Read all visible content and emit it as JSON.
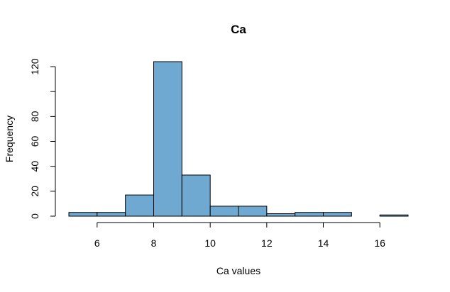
{
  "chart_data": {
    "type": "bar",
    "title": "Ca",
    "xlabel": "Ca values",
    "ylabel": "Frequency",
    "bins": [
      {
        "start": 5,
        "end": 6,
        "count": 3
      },
      {
        "start": 6,
        "end": 7,
        "count": 3
      },
      {
        "start": 7,
        "end": 8,
        "count": 17
      },
      {
        "start": 8,
        "end": 9,
        "count": 124
      },
      {
        "start": 9,
        "end": 10,
        "count": 33
      },
      {
        "start": 10,
        "end": 11,
        "count": 8
      },
      {
        "start": 11,
        "end": 12,
        "count": 8
      },
      {
        "start": 12,
        "end": 13,
        "count": 2
      },
      {
        "start": 13,
        "end": 14,
        "count": 3
      },
      {
        "start": 14,
        "end": 15,
        "count": 3
      },
      {
        "start": 15,
        "end": 16,
        "count": 0
      },
      {
        "start": 16,
        "end": 17,
        "count": 1
      }
    ],
    "xlim": [
      5,
      17
    ],
    "ylim": [
      0,
      124
    ],
    "x_ticks": [
      6,
      8,
      10,
      12,
      14,
      16
    ],
    "x_tick_labels": [
      "6",
      "8",
      "10",
      "12",
      "14",
      "16"
    ],
    "y_ticks": [
      0,
      20,
      40,
      60,
      80,
      100,
      120
    ],
    "y_tick_labels": [
      "0",
      "20",
      "40",
      "60",
      "80",
      "",
      "120"
    ],
    "bar_color": "#6fa8d0",
    "bar_edge_color": "#000000",
    "grid": false
  }
}
